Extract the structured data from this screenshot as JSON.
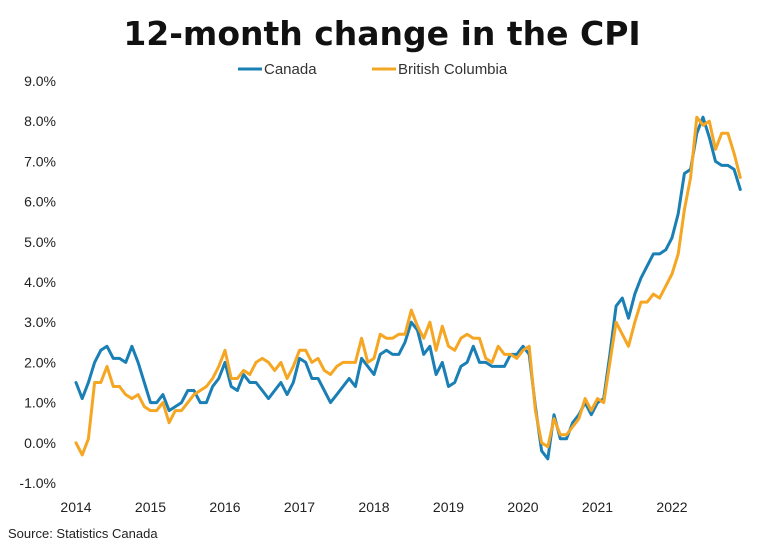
{
  "chart_data": {
    "type": "line",
    "title": "12-month change in the CPI",
    "source": "Source: Statistics Canada",
    "x_start": "2014-01",
    "x_end": "2022-12",
    "x_ticks": [
      "2014",
      "2015",
      "2016",
      "2017",
      "2018",
      "2019",
      "2020",
      "2021",
      "2022"
    ],
    "y_ticks": [
      "9.0%",
      "8.0%",
      "7.0%",
      "6.0%",
      "5.0%",
      "4.0%",
      "3.0%",
      "2.0%",
      "1.0%",
      "0.0%",
      "-1.0%"
    ],
    "ylim": [
      -1,
      9
    ],
    "grid": false,
    "legend_position": "top-center",
    "series": [
      {
        "name": "Canada",
        "color": "#1a7fb5",
        "values": [
          1.5,
          1.1,
          1.5,
          2.0,
          2.3,
          2.4,
          2.1,
          2.1,
          2.0,
          2.4,
          2.0,
          1.5,
          1.0,
          1.0,
          1.2,
          0.8,
          0.9,
          1.0,
          1.3,
          1.3,
          1.0,
          1.0,
          1.4,
          1.6,
          2.0,
          1.4,
          1.3,
          1.7,
          1.5,
          1.5,
          1.3,
          1.1,
          1.3,
          1.5,
          1.2,
          1.5,
          2.1,
          2.0,
          1.6,
          1.6,
          1.3,
          1.0,
          1.2,
          1.4,
          1.6,
          1.4,
          2.1,
          1.9,
          1.7,
          2.2,
          2.3,
          2.2,
          2.2,
          2.5,
          3.0,
          2.8,
          2.2,
          2.4,
          1.7,
          2.0,
          1.4,
          1.5,
          1.9,
          2.0,
          2.4,
          2.0,
          2.0,
          1.9,
          1.9,
          1.9,
          2.2,
          2.2,
          2.4,
          2.2,
          0.9,
          -0.2,
          -0.4,
          0.7,
          0.1,
          0.1,
          0.5,
          0.7,
          1.0,
          0.7,
          1.0,
          1.1,
          2.2,
          3.4,
          3.6,
          3.1,
          3.7,
          4.1,
          4.4,
          4.7,
          4.7,
          4.8,
          5.1,
          5.7,
          6.7,
          6.8,
          7.7,
          8.1,
          7.6,
          7.0,
          6.9,
          6.9,
          6.8,
          6.3
        ]
      },
      {
        "name": "British Columbia",
        "color": "#f5a623",
        "values": [
          0.0,
          -0.3,
          0.1,
          1.5,
          1.5,
          1.9,
          1.4,
          1.4,
          1.2,
          1.1,
          1.2,
          0.9,
          0.8,
          0.8,
          1.0,
          0.5,
          0.8,
          0.8,
          1.0,
          1.2,
          1.3,
          1.4,
          1.6,
          1.9,
          2.3,
          1.6,
          1.6,
          1.8,
          1.7,
          2.0,
          2.1,
          2.0,
          1.8,
          2.0,
          1.6,
          1.9,
          2.3,
          2.3,
          2.0,
          2.1,
          1.8,
          1.7,
          1.9,
          2.0,
          2.0,
          2.0,
          2.6,
          2.0,
          2.1,
          2.7,
          2.6,
          2.6,
          2.7,
          2.7,
          3.3,
          2.9,
          2.6,
          3.0,
          2.3,
          2.9,
          2.4,
          2.3,
          2.6,
          2.7,
          2.6,
          2.6,
          2.1,
          2.0,
          2.4,
          2.2,
          2.2,
          2.1,
          2.3,
          2.4,
          0.8,
          0.0,
          -0.1,
          0.6,
          0.2,
          0.2,
          0.4,
          0.6,
          1.1,
          0.8,
          1.1,
          1.0,
          2.0,
          3.0,
          2.7,
          2.4,
          3.0,
          3.5,
          3.5,
          3.7,
          3.6,
          3.9,
          4.2,
          4.7,
          5.8,
          6.6,
          8.1,
          7.9,
          8.0,
          7.3,
          7.7,
          7.7,
          7.2,
          6.6
        ]
      }
    ]
  }
}
